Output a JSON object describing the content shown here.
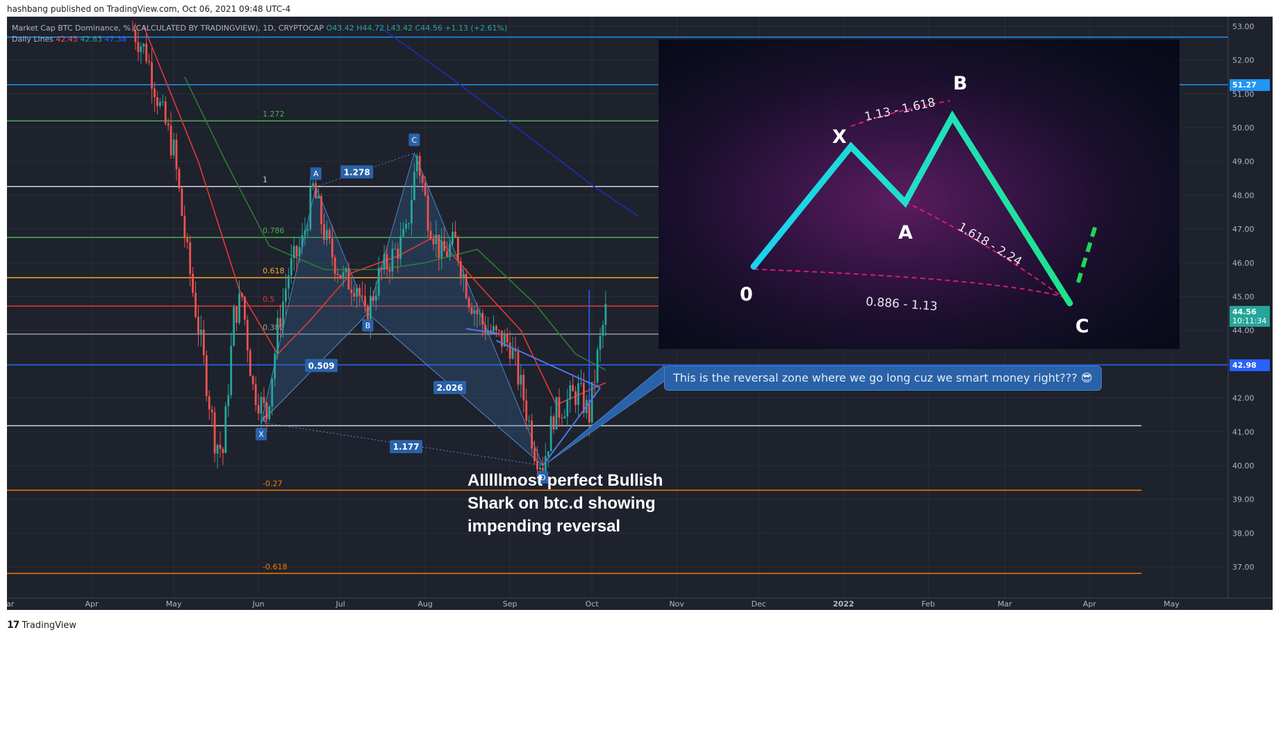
{
  "header": {
    "published_line": "hashbang published on TradingView.com, Oct 06, 2021 09:48 UTC-4"
  },
  "legend": {
    "main_title": "Market Cap BTC Dominance, % (CALCULATED BY TRADINGVIEW), 1D, CRYPTOCAP",
    "ohlc": {
      "o": "O43.42",
      "h": "H44.72",
      "l": "L43.42",
      "c": "C44.56",
      "chg": "+1.13 (+2.61%)"
    },
    "indicator_title": "Daily Lines",
    "indicator_values": [
      "42.45",
      "42.83",
      "47.38"
    ]
  },
  "colors": {
    "background": "#1e222d",
    "up": "#26a69a",
    "down": "#ef5350",
    "pattern": "#3b6fa8",
    "ma_red": "#e53935",
    "ma_green": "#2e7d32",
    "ma_blue": "#1a2fb8"
  },
  "chart_data": {
    "type": "candlestick",
    "y_axis": {
      "min": 36.3,
      "max": 53.1,
      "ticks": [
        "53.00",
        "52.00",
        "51.00",
        "50.00",
        "49.00",
        "48.00",
        "47.00",
        "46.00",
        "45.00",
        "44.00",
        "43.00",
        "42.00",
        "41.00",
        "40.00",
        "39.00",
        "38.00",
        "37.00"
      ],
      "badges": [
        {
          "value": 51.27,
          "label": "51.27",
          "color": "#2196f3"
        },
        {
          "value": 44.56,
          "label": "44.56",
          "sublabel": "10:11:34",
          "color": "#26a69a"
        },
        {
          "value": 42.98,
          "label": "42.98",
          "color": "#2962ff"
        }
      ]
    },
    "x_axis": {
      "labels": [
        {
          "label": "Mar",
          "date": "2021-03-01"
        },
        {
          "label": "Apr",
          "date": "2021-04-01"
        },
        {
          "label": "May",
          "date": "2021-05-01"
        },
        {
          "label": "Jun",
          "date": "2021-06-01"
        },
        {
          "label": "Jul",
          "date": "2021-07-01"
        },
        {
          "label": "Aug",
          "date": "2021-08-01"
        },
        {
          "label": "Sep",
          "date": "2021-09-01"
        },
        {
          "label": "Oct",
          "date": "2021-10-01"
        },
        {
          "label": "Nov",
          "date": "2021-11-01"
        },
        {
          "label": "Dec",
          "date": "2021-12-01"
        },
        {
          "label": "2022",
          "date": "2022-01-01"
        },
        {
          "label": "Feb",
          "date": "2022-02-01"
        },
        {
          "label": "Mar",
          "date": "2022-03-01"
        },
        {
          "label": "Apr",
          "date": "2022-04-01"
        },
        {
          "label": "May",
          "date": "2022-05-01"
        }
      ]
    },
    "price_path": [
      [
        "2021-04-16",
        52.9
      ],
      [
        "2021-04-21",
        52.2
      ],
      [
        "2021-04-26",
        50.6
      ],
      [
        "2021-05-01",
        49.3
      ],
      [
        "2021-05-06",
        46.2
      ],
      [
        "2021-05-11",
        43.6
      ],
      [
        "2021-05-16",
        40.8
      ],
      [
        "2021-05-19",
        40.4
      ],
      [
        "2021-05-23",
        44.4
      ],
      [
        "2021-05-26",
        45.0
      ],
      [
        "2021-05-30",
        42.3
      ],
      [
        "2021-06-04",
        41.5
      ],
      [
        "2021-06-08",
        44.0
      ],
      [
        "2021-06-12",
        45.7
      ],
      [
        "2021-06-17",
        46.6
      ],
      [
        "2021-06-21",
        48.2
      ],
      [
        "2021-06-26",
        46.6
      ],
      [
        "2021-07-02",
        45.5
      ],
      [
        "2021-07-07",
        45.4
      ],
      [
        "2021-07-10",
        44.3
      ],
      [
        "2021-07-15",
        45.6
      ],
      [
        "2021-07-20",
        46.2
      ],
      [
        "2021-07-25",
        46.8
      ],
      [
        "2021-07-29",
        49.2
      ],
      [
        "2021-08-02",
        47.4
      ],
      [
        "2021-08-07",
        46.2
      ],
      [
        "2021-08-12",
        46.6
      ],
      [
        "2021-08-17",
        45.0
      ],
      [
        "2021-08-22",
        44.2
      ],
      [
        "2021-08-27",
        43.8
      ],
      [
        "2021-09-01",
        43.6
      ],
      [
        "2021-09-06",
        42.0
      ],
      [
        "2021-09-10",
        40.5
      ],
      [
        "2021-09-13",
        40.0
      ],
      [
        "2021-09-17",
        41.5
      ],
      [
        "2021-09-22",
        41.9
      ],
      [
        "2021-09-26",
        42.2
      ],
      [
        "2021-09-30",
        41.5
      ],
      [
        "2021-10-03",
        43.2
      ],
      [
        "2021-10-06",
        44.56
      ]
    ],
    "moving_averages": [
      {
        "color": "#e53935",
        "points": [
          [
            "2021-04-20",
            53.0
          ],
          [
            "2021-05-10",
            49.0
          ],
          [
            "2021-05-25",
            45.2
          ],
          [
            "2021-06-08",
            43.3
          ],
          [
            "2021-06-20",
            44.3
          ],
          [
            "2021-07-05",
            45.7
          ],
          [
            "2021-07-22",
            46.2
          ],
          [
            "2021-08-05",
            46.8
          ],
          [
            "2021-08-20",
            45.4
          ],
          [
            "2021-09-05",
            44.0
          ],
          [
            "2021-09-18",
            41.8
          ],
          [
            "2021-10-06",
            42.45
          ]
        ]
      },
      {
        "color": "#2e7d32",
        "points": [
          [
            "2021-05-05",
            51.5
          ],
          [
            "2021-05-20",
            49.0
          ],
          [
            "2021-06-05",
            46.5
          ],
          [
            "2021-06-25",
            45.8
          ],
          [
            "2021-07-15",
            45.8
          ],
          [
            "2021-08-01",
            46.0
          ],
          [
            "2021-08-20",
            46.4
          ],
          [
            "2021-09-10",
            44.8
          ],
          [
            "2021-09-25",
            43.3
          ],
          [
            "2021-10-06",
            42.83
          ]
        ]
      },
      {
        "color": "#1a2fb8",
        "points": [
          [
            "2021-07-15",
            53.0
          ],
          [
            "2021-08-10",
            51.5
          ],
          [
            "2021-09-10",
            49.6
          ],
          [
            "2021-10-01",
            48.3
          ],
          [
            "2021-10-18",
            47.38
          ]
        ]
      }
    ],
    "fibonacci": {
      "start_date": "2021-06-01",
      "end_date": "2022-04-20",
      "levels": [
        {
          "label": "1.272",
          "value": 50.2,
          "color": "#4caf50"
        },
        {
          "label": "1",
          "value": 48.26,
          "color": "#d1d4dc"
        },
        {
          "label": "0.786",
          "value": 46.75,
          "color": "#4caf50"
        },
        {
          "label": "0.618",
          "value": 45.56,
          "color": "#f9a825"
        },
        {
          "label": "0.5",
          "value": 44.72,
          "color": "#e53935"
        },
        {
          "label": "0.382",
          "value": 43.89,
          "color": "#9e9e9e"
        },
        {
          "label": "0",
          "value": 41.18,
          "color": "#d1d4dc"
        },
        {
          "label": "-0.27",
          "value": 39.27,
          "color": "#f57c00"
        },
        {
          "label": "-0.618",
          "value": 36.81,
          "color": "#f57c00"
        }
      ]
    },
    "horizontal_lines": [
      {
        "value": 52.68,
        "color": "#2196f3"
      },
      {
        "value": 51.27,
        "color": "#2196f3"
      },
      {
        "value": 42.98,
        "color": "#2962ff"
      }
    ],
    "harmonic_pattern": {
      "points": [
        {
          "label": "X",
          "date": "2021-06-02",
          "value": 41.28
        },
        {
          "label": "A",
          "date": "2021-06-22",
          "value": 48.25
        },
        {
          "label": "B",
          "date": "2021-07-11",
          "value": 44.5
        },
        {
          "label": "C",
          "date": "2021-07-28",
          "value": 49.25
        },
        {
          "label": "D",
          "date": "2021-09-13",
          "value": 40.0
        }
      ],
      "ratios": [
        {
          "label": "0.509",
          "date": "2021-06-24",
          "value": 42.95
        },
        {
          "label": "1.278",
          "date": "2021-07-07",
          "value": 48.68
        },
        {
          "label": "2.026",
          "date": "2021-08-10",
          "value": 42.3
        },
        {
          "label": "1.177",
          "date": "2021-07-25",
          "value": 40.55
        }
      ]
    },
    "wedge": {
      "upper": [
        [
          "2021-08-27",
          43.7
        ],
        [
          "2021-10-04",
          42.3
        ]
      ],
      "lower": [
        [
          "2021-09-13",
          40.0
        ],
        [
          "2021-10-04",
          42.3
        ]
      ],
      "short_line": [
        [
          "2021-08-16",
          44.05
        ],
        [
          "2021-08-28",
          43.9
        ]
      ]
    }
  },
  "inset": {
    "points": {
      "o": "0",
      "x": "X",
      "a": "A",
      "b": "B",
      "c": "C"
    },
    "ratios": {
      "xb": "1.13 - 1.618",
      "ac": "1.618 - 2.24",
      "oc": "0.886 - 1.13"
    }
  },
  "callout": {
    "text": "This is the reversal zone where we go long cuz we smart money right??? 😎"
  },
  "headline": {
    "text": "Alllllmost perfect Bullish Shark on btc.d showing impending reversal"
  },
  "footer": {
    "brand": "TradingView",
    "logo_glyph": "17"
  }
}
